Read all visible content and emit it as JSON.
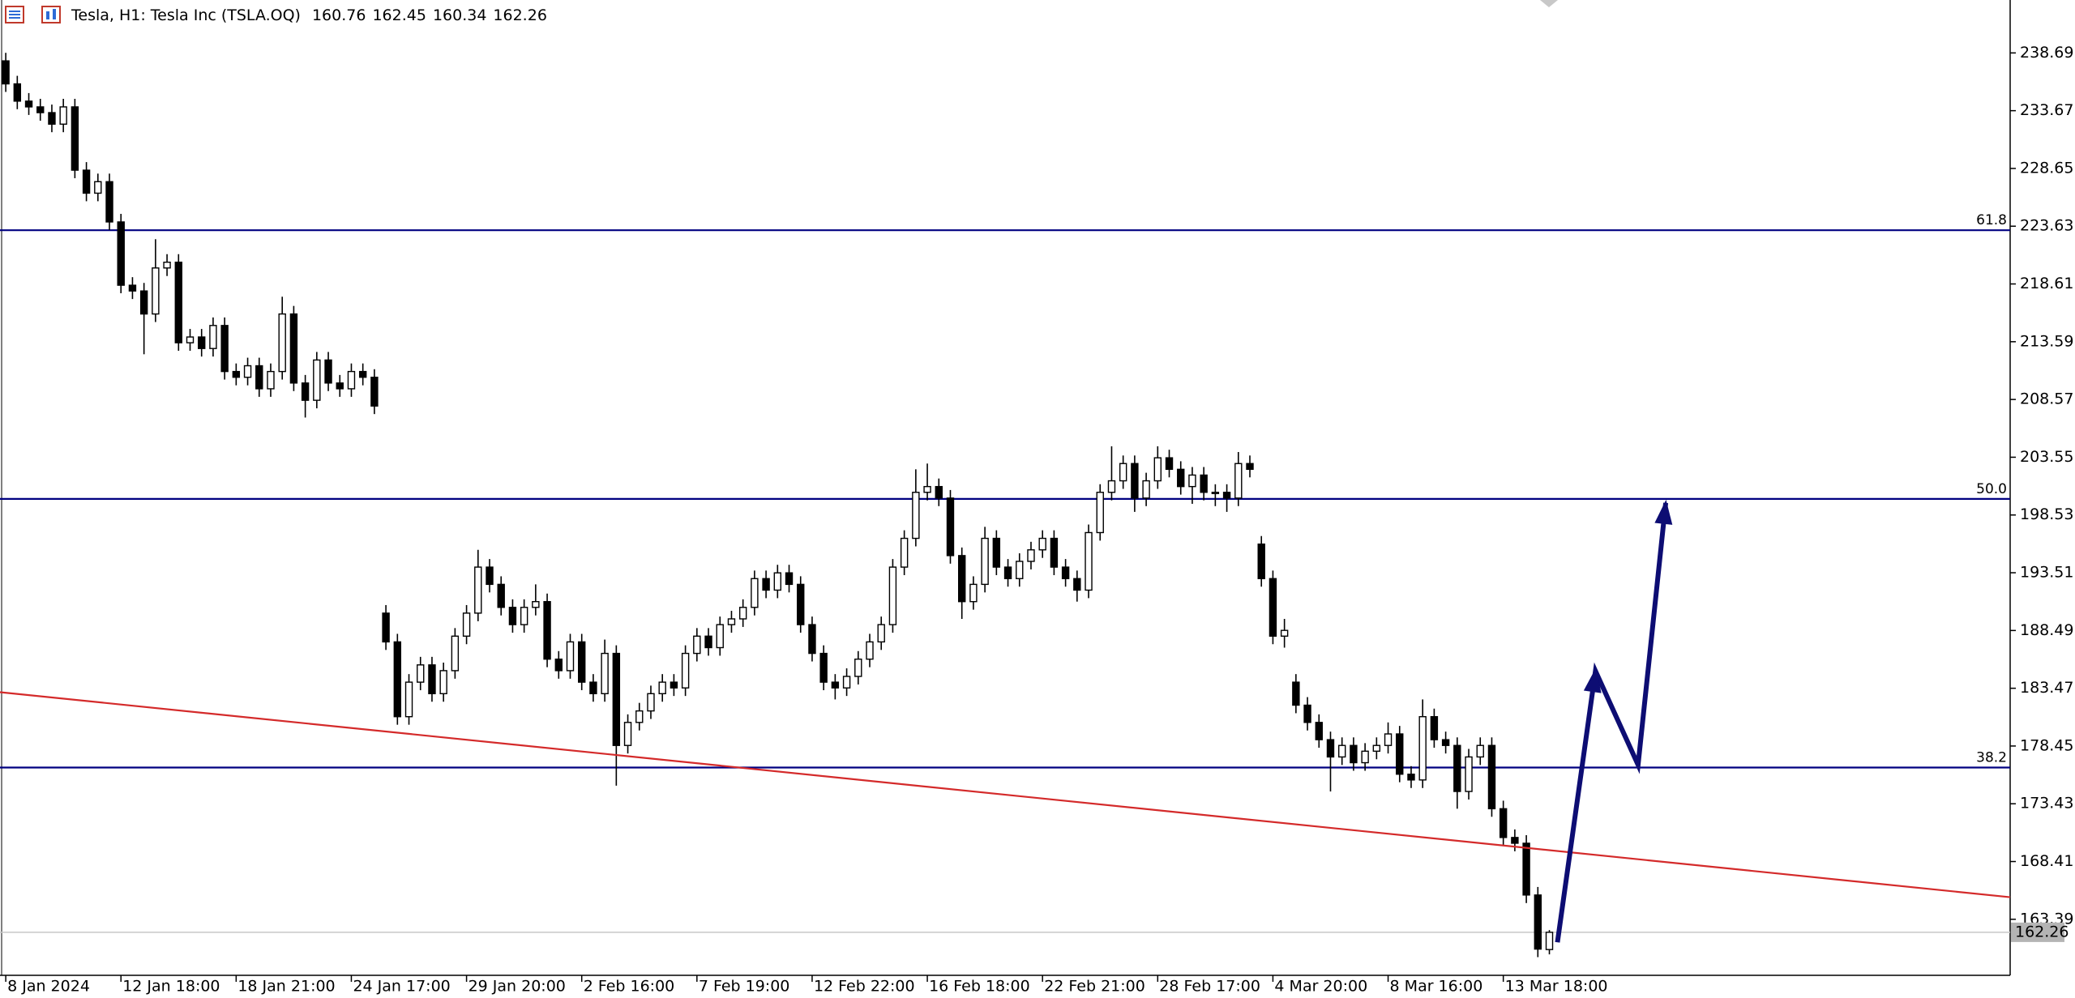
{
  "chart_data": {
    "type": "candlestick",
    "title": "Tesla, H1:  Tesla Inc (TSLA.OQ)",
    "xlim": [
      -0.5,
      174
    ],
    "ylim": [
      158.52,
      243.29
    ],
    "yticks": [
      238.69,
      233.67,
      228.65,
      223.63,
      218.61,
      213.59,
      208.57,
      203.55,
      198.53,
      193.51,
      188.49,
      183.47,
      178.45,
      173.43,
      168.41,
      163.39
    ],
    "xticks": [
      {
        "value": 0,
        "label": "8 Jan 2024"
      },
      {
        "value": 10,
        "label": "12 Jan 18:00"
      },
      {
        "value": 20,
        "label": "18 Jan 21:00"
      },
      {
        "value": 30,
        "label": "24 Jan 17:00"
      },
      {
        "value": 40,
        "label": "29 Jan 20:00"
      },
      {
        "value": 50,
        "label": "2 Feb 16:00"
      },
      {
        "value": 60,
        "label": "7 Feb 19:00"
      },
      {
        "value": 70,
        "label": "12 Feb 22:00"
      },
      {
        "value": 80,
        "label": "16 Feb 18:00"
      },
      {
        "value": 90,
        "label": "22 Feb 21:00"
      },
      {
        "value": 100,
        "label": "28 Feb 17:00"
      },
      {
        "value": 110,
        "label": "4 Mar 20:00"
      },
      {
        "value": 120,
        "label": "8 Mar 16:00"
      },
      {
        "value": 130,
        "label": "13 Mar 18:00"
      }
    ],
    "up_color": "#ffffff",
    "down_color": "#000000",
    "candles": [
      [
        238.0,
        238.7,
        235.3,
        236.0
      ],
      [
        236.0,
        236.7,
        233.8,
        234.5
      ],
      [
        234.5,
        235.2,
        233.3,
        234.0
      ],
      [
        234.0,
        234.7,
        232.8,
        233.5
      ],
      [
        233.5,
        234.2,
        231.8,
        232.5
      ],
      [
        232.5,
        234.7,
        231.8,
        234.0
      ],
      [
        234.0,
        234.7,
        227.8,
        228.5
      ],
      [
        228.5,
        229.2,
        225.8,
        226.5
      ],
      [
        226.5,
        228.2,
        225.8,
        227.5
      ],
      [
        227.5,
        228.2,
        223.3,
        224.0
      ],
      [
        224.0,
        224.7,
        217.8,
        218.5
      ],
      [
        218.5,
        219.2,
        217.3,
        218.0
      ],
      [
        218.0,
        218.7,
        212.5,
        216.0
      ],
      [
        216.0,
        222.5,
        215.3,
        220.0
      ],
      [
        220.0,
        221.2,
        219.3,
        220.5
      ],
      [
        220.5,
        221.2,
        212.8,
        213.5
      ],
      [
        213.5,
        214.7,
        212.8,
        214.0
      ],
      [
        214.0,
        214.7,
        212.3,
        213.0
      ],
      [
        213.0,
        215.7,
        212.3,
        215.0
      ],
      [
        215.0,
        215.7,
        210.3,
        211.0
      ],
      [
        211.0,
        211.7,
        209.8,
        210.5
      ],
      [
        210.5,
        212.2,
        209.8,
        211.5
      ],
      [
        211.5,
        212.2,
        208.8,
        209.5
      ],
      [
        209.5,
        211.7,
        208.8,
        211.0
      ],
      [
        211.0,
        217.5,
        210.3,
        216.0
      ],
      [
        216.0,
        216.7,
        209.3,
        210.0
      ],
      [
        210.0,
        210.7,
        207.0,
        208.5
      ],
      [
        208.5,
        212.7,
        207.8,
        212.0
      ],
      [
        212.0,
        212.7,
        209.3,
        210.0
      ],
      [
        210.0,
        210.7,
        208.8,
        209.5
      ],
      [
        209.5,
        211.7,
        208.8,
        211.0
      ],
      [
        211.0,
        211.7,
        209.8,
        210.5
      ],
      [
        210.5,
        211.2,
        207.3,
        208.0
      ],
      [
        190.0,
        190.7,
        186.8,
        187.5
      ],
      [
        187.5,
        188.2,
        180.3,
        181.0
      ],
      [
        181.0,
        184.7,
        180.3,
        184.0
      ],
      [
        184.0,
        186.2,
        183.3,
        185.5
      ],
      [
        185.5,
        186.2,
        182.3,
        183.0
      ],
      [
        183.0,
        185.7,
        182.3,
        185.0
      ],
      [
        185.0,
        188.7,
        184.3,
        188.0
      ],
      [
        188.0,
        190.7,
        187.3,
        190.0
      ],
      [
        190.0,
        195.5,
        189.3,
        194.0
      ],
      [
        194.0,
        194.7,
        191.8,
        192.5
      ],
      [
        192.5,
        193.2,
        189.8,
        190.5
      ],
      [
        190.5,
        191.2,
        188.3,
        189.0
      ],
      [
        189.0,
        191.2,
        188.3,
        190.5
      ],
      [
        190.5,
        192.5,
        189.8,
        191.0
      ],
      [
        191.0,
        191.7,
        185.3,
        186.0
      ],
      [
        186.0,
        186.7,
        184.3,
        185.0
      ],
      [
        185.0,
        188.2,
        184.3,
        187.5
      ],
      [
        187.5,
        188.2,
        183.3,
        184.0
      ],
      [
        184.0,
        184.7,
        182.3,
        183.0
      ],
      [
        183.0,
        187.7,
        182.3,
        186.5
      ],
      [
        186.5,
        187.2,
        175.0,
        178.5
      ],
      [
        178.5,
        181.2,
        177.8,
        180.5
      ],
      [
        180.5,
        182.2,
        179.8,
        181.5
      ],
      [
        181.5,
        183.7,
        180.8,
        183.0
      ],
      [
        183.0,
        184.7,
        182.3,
        184.0
      ],
      [
        184.0,
        184.7,
        182.8,
        183.5
      ],
      [
        183.5,
        187.2,
        182.8,
        186.5
      ],
      [
        186.5,
        188.7,
        185.8,
        188.0
      ],
      [
        188.0,
        188.7,
        186.3,
        187.0
      ],
      [
        187.0,
        189.7,
        186.3,
        189.0
      ],
      [
        189.0,
        190.2,
        188.3,
        189.5
      ],
      [
        189.5,
        191.2,
        188.8,
        190.5
      ],
      [
        190.5,
        193.7,
        189.8,
        193.0
      ],
      [
        193.0,
        193.7,
        191.3,
        192.0
      ],
      [
        192.0,
        194.2,
        191.3,
        193.5
      ],
      [
        193.5,
        194.2,
        191.8,
        192.5
      ],
      [
        192.5,
        193.2,
        188.3,
        189.0
      ],
      [
        189.0,
        189.7,
        185.8,
        186.5
      ],
      [
        186.5,
        187.2,
        183.3,
        184.0
      ],
      [
        184.0,
        184.7,
        182.5,
        183.5
      ],
      [
        183.5,
        185.2,
        182.8,
        184.5
      ],
      [
        184.5,
        186.7,
        183.8,
        186.0
      ],
      [
        186.0,
        188.2,
        185.3,
        187.5
      ],
      [
        187.5,
        189.7,
        186.8,
        189.0
      ],
      [
        189.0,
        194.7,
        188.3,
        194.0
      ],
      [
        194.0,
        197.2,
        193.3,
        196.5
      ],
      [
        196.5,
        202.5,
        195.8,
        200.5
      ],
      [
        200.5,
        203.0,
        199.8,
        201.0
      ],
      [
        201.0,
        201.7,
        199.3,
        200.0
      ],
      [
        200.0,
        200.7,
        194.3,
        195.0
      ],
      [
        195.0,
        195.7,
        189.5,
        191.0
      ],
      [
        191.0,
        193.2,
        190.3,
        192.5
      ],
      [
        192.5,
        197.5,
        191.8,
        196.5
      ],
      [
        196.5,
        197.2,
        193.3,
        194.0
      ],
      [
        194.0,
        194.7,
        192.3,
        193.0
      ],
      [
        193.0,
        195.2,
        192.3,
        194.5
      ],
      [
        194.5,
        196.2,
        193.8,
        195.5
      ],
      [
        195.5,
        197.2,
        194.8,
        196.5
      ],
      [
        196.5,
        197.2,
        193.3,
        194.0
      ],
      [
        194.0,
        194.7,
        192.3,
        193.0
      ],
      [
        193.0,
        193.7,
        191.0,
        192.0
      ],
      [
        192.0,
        197.7,
        191.3,
        197.0
      ],
      [
        197.0,
        201.2,
        196.3,
        200.5
      ],
      [
        200.5,
        204.5,
        199.8,
        201.5
      ],
      [
        201.5,
        203.7,
        200.8,
        203.0
      ],
      [
        203.0,
        203.7,
        198.8,
        200.0
      ],
      [
        200.0,
        202.2,
        199.3,
        201.5
      ],
      [
        201.5,
        204.5,
        200.8,
        203.5
      ],
      [
        203.5,
        204.2,
        201.8,
        202.5
      ],
      [
        202.5,
        203.2,
        200.3,
        201.0
      ],
      [
        201.0,
        202.7,
        199.5,
        202.0
      ],
      [
        202.0,
        202.7,
        199.8,
        200.5
      ],
      [
        200.5,
        201.2,
        199.3,
        200.5
      ],
      [
        200.5,
        201.2,
        198.8,
        200.0
      ],
      [
        200.0,
        204.0,
        199.3,
        203.0
      ],
      [
        203.0,
        203.7,
        201.8,
        202.5
      ],
      [
        196.0,
        196.7,
        192.3,
        193.0
      ],
      [
        193.0,
        193.7,
        187.3,
        188.0
      ],
      [
        188.0,
        189.5,
        187.0,
        188.5
      ],
      [
        184.0,
        184.7,
        181.3,
        182.0
      ],
      [
        182.0,
        182.7,
        179.8,
        180.5
      ],
      [
        180.5,
        181.2,
        178.3,
        179.0
      ],
      [
        179.0,
        179.7,
        174.5,
        177.5
      ],
      [
        177.5,
        179.2,
        176.8,
        178.5
      ],
      [
        178.5,
        179.2,
        176.3,
        177.0
      ],
      [
        177.0,
        178.7,
        176.3,
        178.0
      ],
      [
        178.0,
        179.2,
        177.3,
        178.5
      ],
      [
        178.5,
        180.5,
        177.8,
        179.5
      ],
      [
        179.5,
        180.2,
        175.3,
        176.0
      ],
      [
        176.0,
        176.7,
        174.8,
        175.5
      ],
      [
        175.5,
        182.5,
        174.8,
        181.0
      ],
      [
        181.0,
        181.7,
        178.3,
        179.0
      ],
      [
        179.0,
        179.7,
        177.8,
        178.5
      ],
      [
        178.5,
        179.2,
        173.0,
        174.5
      ],
      [
        174.5,
        178.2,
        173.8,
        177.5
      ],
      [
        177.5,
        179.2,
        176.8,
        178.5
      ],
      [
        178.5,
        179.2,
        172.3,
        173.0
      ],
      [
        173.0,
        173.7,
        169.8,
        170.5
      ],
      [
        170.5,
        171.2,
        169.3,
        170.0
      ],
      [
        170.0,
        170.7,
        164.8,
        165.5
      ],
      [
        165.5,
        166.2,
        160.1,
        160.8
      ],
      [
        160.76,
        162.45,
        160.34,
        162.26
      ]
    ],
    "levels": [
      {
        "label": "61.8",
        "price": 223.28
      },
      {
        "label": "50.0",
        "price": 199.93
      },
      {
        "label": "38.2",
        "price": 176.58
      }
    ],
    "level_color": "#000080",
    "trendline": {
      "x": [
        -0.5,
        174
      ],
      "y": [
        183.13,
        165.31
      ],
      "color": "#d42a2a"
    },
    "arrow": {
      "x": [
        134.7,
        138.0,
        141.7,
        144.1
      ],
      "y": [
        161.39,
        184.97,
        176.81,
        199.58
      ],
      "color": "#0d0d73"
    }
  }
}
